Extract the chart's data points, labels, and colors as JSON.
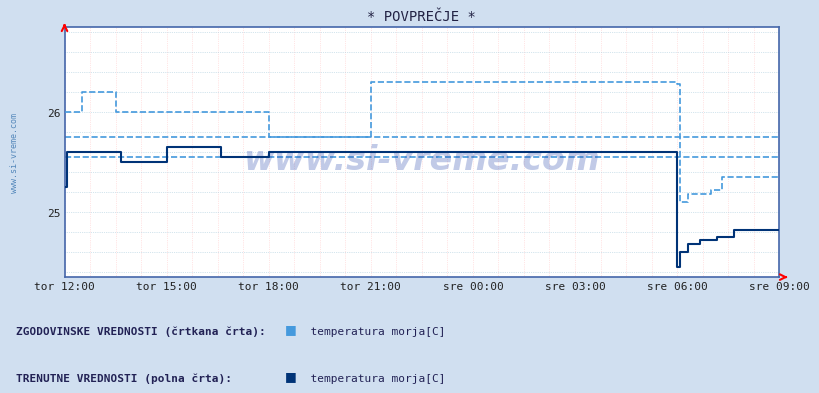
{
  "title": "* POVPREČJE *",
  "fig_bg_color": "#d0dff0",
  "plot_bg_color": "#ffffff",
  "line_color_dashed": "#4499dd",
  "line_color_solid": "#003377",
  "vgrid_color": "#ffcccc",
  "hgrid_color": "#aaccdd",
  "ref_dashed_color": "#4499dd",
  "yticks": [
    25,
    26
  ],
  "xtick_labels": [
    "tor 12:00",
    "tor 15:00",
    "tor 18:00",
    "tor 21:00",
    "sre 00:00",
    "sre 03:00",
    "sre 06:00",
    "sre 09:00"
  ],
  "watermark": "www.si-vreme.com",
  "side_label": "www.si-vreme.com",
  "legend_text1": "ZGODOVINSKE VREDNOSTI (črtkana črta):",
  "legend_text2": "TRENUTNE VREDNOSTI (polna črta):",
  "legend_label1": "  temperatura morja[C]",
  "legend_label2": "  temperatura morja[C]",
  "legend_color1": "#4499dd",
  "legend_color2": "#003377",
  "xmin": 0,
  "xmax": 252,
  "ymin": 24.35,
  "ymax": 26.85,
  "ref_line1_y": 25.75,
  "ref_line2_y": 25.55,
  "dashed_x": [
    0,
    6,
    6,
    18,
    18,
    72,
    72,
    108,
    108,
    216,
    216,
    217,
    217,
    220,
    220,
    228,
    228,
    232,
    232,
    252
  ],
  "dashed_y": [
    26.0,
    26.0,
    26.2,
    26.2,
    26.0,
    26.0,
    25.75,
    25.75,
    26.3,
    26.3,
    26.28,
    26.28,
    25.1,
    25.1,
    25.18,
    25.18,
    25.22,
    25.22,
    25.35,
    25.35
  ],
  "solid_x": [
    0,
    1,
    1,
    20,
    20,
    36,
    36,
    55,
    55,
    72,
    72,
    216,
    216,
    217,
    217,
    220,
    220,
    224,
    224,
    230,
    230,
    236,
    236,
    252
  ],
  "solid_y": [
    25.25,
    25.25,
    25.6,
    25.6,
    25.5,
    25.65,
    25.65,
    25.55,
    25.55,
    25.6,
    25.6,
    25.6,
    24.45,
    24.45,
    24.6,
    24.6,
    24.68,
    24.68,
    24.72,
    24.72,
    24.75,
    24.75,
    24.82,
    24.82
  ]
}
